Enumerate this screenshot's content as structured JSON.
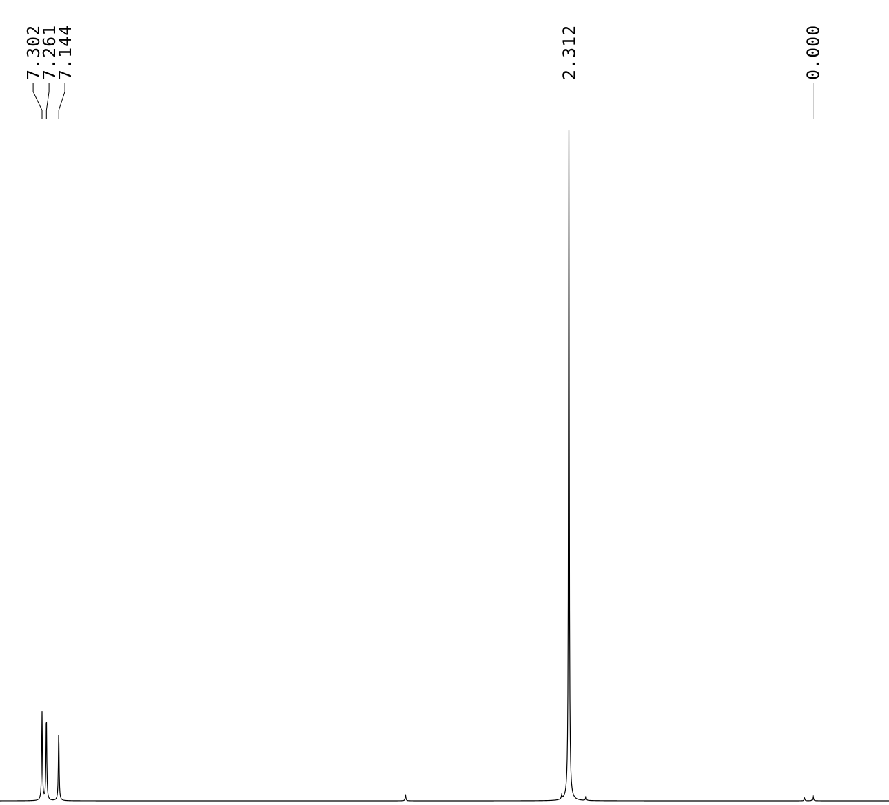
{
  "chart_data": {
    "type": "line",
    "title": "",
    "xlabel": "",
    "ylabel": "",
    "x_unit": "ppm",
    "xlim": [
      7.7,
      -0.72
    ],
    "grid": false,
    "legend": "none",
    "line_color": "#000000",
    "background_color": "#ffffff",
    "peak_labels": [
      {
        "shift": 7.302,
        "text": "7.302"
      },
      {
        "shift": 7.261,
        "text": "7.261"
      },
      {
        "shift": 7.144,
        "text": "7.144"
      },
      {
        "shift": 2.312,
        "text": "2.312"
      },
      {
        "shift": 0.0,
        "text": "0.000"
      }
    ],
    "peaks": [
      {
        "shift": 7.302,
        "intensity": 0.132
      },
      {
        "shift": 7.261,
        "intensity": 0.132
      },
      {
        "shift": 7.144,
        "intensity": 0.106
      },
      {
        "shift": 2.312,
        "intensity": 1.0
      },
      {
        "shift": 2.38,
        "intensity": 0.006
      },
      {
        "shift": 2.15,
        "intensity": 0.007
      },
      {
        "shift": 3.86,
        "intensity": 0.009
      },
      {
        "shift": 0.0,
        "intensity": 0.009
      },
      {
        "shift": 0.08,
        "intensity": 0.004
      }
    ]
  }
}
